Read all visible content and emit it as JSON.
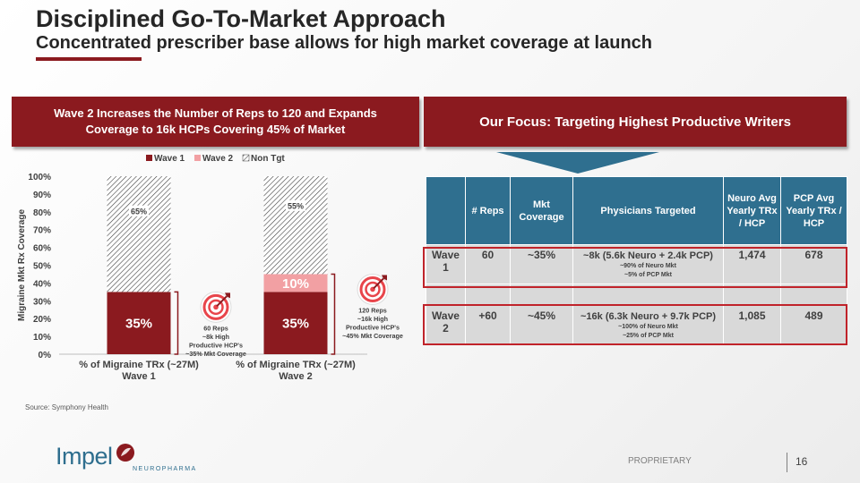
{
  "header": {
    "title": "Disciplined Go-To-Market Approach",
    "subtitle": "Concentrated prescriber base allows for high market coverage at launch"
  },
  "banners": {
    "left": "Wave 2 Increases the Number of Reps to 120 and Expands Coverage to 16k HCPs Covering 45% of Market",
    "right": "Our Focus: Targeting Highest Productive Writers"
  },
  "colors": {
    "wave1": "#8b1a1f",
    "wave2": "#f2a0a3",
    "non_tgt_hatch": "#404040",
    "banner": "#8b1a1f",
    "table_header": "#2f6f8f",
    "table_cell": "#d9d9d9",
    "highlight_border": "#c0232a",
    "logo_blue": "#2e6e8e"
  },
  "chart_data": {
    "type": "bar",
    "stacked": true,
    "categories": [
      "% of Migraine TRx (~27M)\nWave 1",
      "% of Migraine TRx (~27M)\nWave 2"
    ],
    "series": [
      {
        "name": "Wave 1",
        "values": [
          35,
          35
        ],
        "labels": [
          "35%",
          "35%"
        ]
      },
      {
        "name": "Wave 2",
        "values": [
          0,
          10
        ],
        "labels": [
          "",
          "10%"
        ]
      },
      {
        "name": "Non Tgt",
        "values": [
          65,
          55
        ],
        "labels": [
          "65%",
          "55%"
        ]
      }
    ],
    "ylabel": "Migraine Mkt Rx Coverage",
    "ylim": [
      0,
      100
    ],
    "yticks": [
      "0%",
      "10%",
      "20%",
      "30%",
      "40%",
      "50%",
      "60%",
      "70%",
      "80%",
      "90%",
      "100%"
    ],
    "legend": [
      "Wave 1",
      "Wave 2",
      "Non Tgt"
    ],
    "legend_position": "top",
    "annotations": [
      {
        "bar": 0,
        "icon": "target-icon",
        "lines": [
          "60 Reps",
          "~8k High",
          "Productive HCP's",
          "~35% Mkt Coverage"
        ]
      },
      {
        "bar": 1,
        "icon": "target-icon",
        "lines": [
          "120 Reps",
          "~16k High",
          "Productive HCP's",
          "~45% Mkt Coverage"
        ]
      }
    ]
  },
  "table": {
    "headers": [
      "",
      "# Reps",
      "Mkt Coverage",
      "Physicians Targeted",
      "Neuro Avg Yearly TRx / HCP",
      "PCP Avg Yearly TRx / HCP"
    ],
    "rows": [
      {
        "wave": "Wave 1",
        "reps": "60",
        "coverage": "~35%",
        "physicians": "~8k (5.6k Neuro + 2.4k PCP)",
        "physicians_note1": "~90% of Neuro Mkt",
        "physicians_note2": "~5% of PCP Mkt",
        "neuro": "1,474",
        "pcp": "678"
      },
      {
        "wave": "Wave 2",
        "reps": "+60",
        "coverage": "~45%",
        "physicians": "~16k (6.3k Neuro + 9.7k PCP)",
        "physicians_note1": "~100% of Neuro Mkt",
        "physicians_note2": "~25% of PCP Mkt",
        "neuro": "1,085",
        "pcp": "489"
      }
    ]
  },
  "footer": {
    "source": "Source: Symphony Health",
    "logo_word": "Impel",
    "logo_sub": "NEUROPHARMA",
    "proprietary": "PROPRIETARY",
    "page_number": "16"
  }
}
